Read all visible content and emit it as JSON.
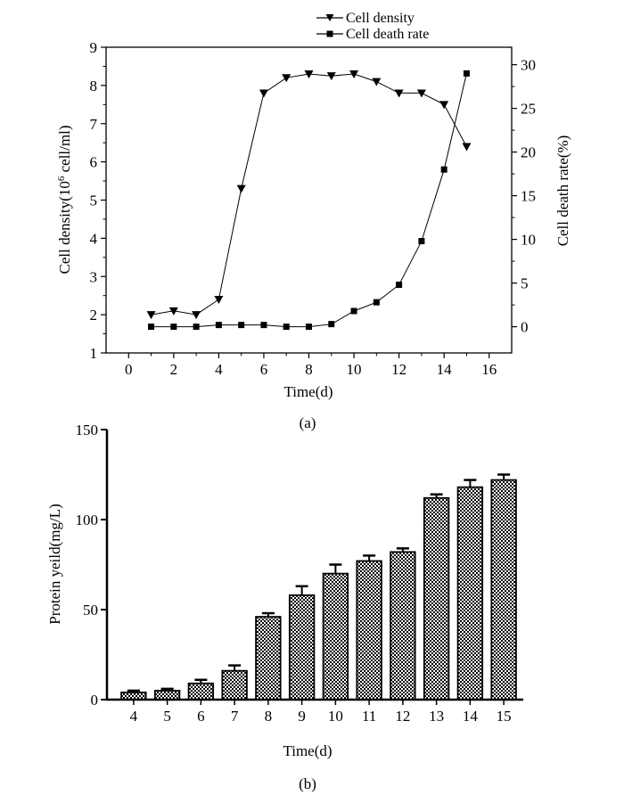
{
  "chart_data": [
    {
      "type": "line",
      "panel_label": "(a)",
      "xlabel": "Time(d)",
      "ylabel_left_prefix": "Cell density(10",
      "ylabel_left_exp": "6",
      "ylabel_left_suffix": " cell/ml)",
      "ylabel_right": "Cell death rate(%)",
      "xlim": [
        -1,
        17
      ],
      "xticks": [
        0,
        2,
        4,
        6,
        8,
        10,
        12,
        14,
        16
      ],
      "ylim_left": [
        1,
        9
      ],
      "yticks_left": [
        1,
        2,
        3,
        4,
        5,
        6,
        7,
        8,
        9
      ],
      "ylim_right": [
        -3,
        32
      ],
      "yticks_right": [
        0,
        5,
        10,
        15,
        20,
        25,
        30
      ],
      "legend_position": "top",
      "series": [
        {
          "name": "Cell density",
          "axis": "left",
          "marker": "triangle-down",
          "x": [
            1,
            2,
            3,
            4,
            5,
            6,
            7,
            8,
            9,
            10,
            11,
            12,
            13,
            14,
            15
          ],
          "values": [
            2.0,
            2.1,
            2.0,
            2.4,
            5.3,
            7.8,
            8.2,
            8.3,
            8.25,
            8.3,
            8.1,
            7.8,
            7.8,
            7.5,
            6.4
          ]
        },
        {
          "name": "Cell death rate",
          "axis": "right",
          "marker": "square",
          "x": [
            1,
            2,
            3,
            4,
            5,
            6,
            7,
            8,
            9,
            10,
            11,
            12,
            13,
            14,
            15
          ],
          "values": [
            0,
            0,
            0,
            0.2,
            0.2,
            0.2,
            0,
            0,
            0.3,
            1.8,
            2.8,
            4.8,
            9.8,
            18,
            29
          ]
        }
      ]
    },
    {
      "type": "bar",
      "panel_label": "(b)",
      "xlabel": "Time(d)",
      "ylabel": "Protein yeild(mg/L)",
      "ylim": [
        0,
        150
      ],
      "yticks": [
        0,
        50,
        100,
        150
      ],
      "categories": [
        "4",
        "5",
        "6",
        "7",
        "8",
        "9",
        "10",
        "11",
        "12",
        "13",
        "14",
        "15"
      ],
      "values": [
        4,
        5,
        9,
        16,
        46,
        58,
        70,
        77,
        82,
        112,
        118,
        122
      ],
      "errors": [
        1,
        1,
        2,
        3,
        2,
        5,
        5,
        3,
        2,
        2,
        4,
        3
      ]
    }
  ]
}
